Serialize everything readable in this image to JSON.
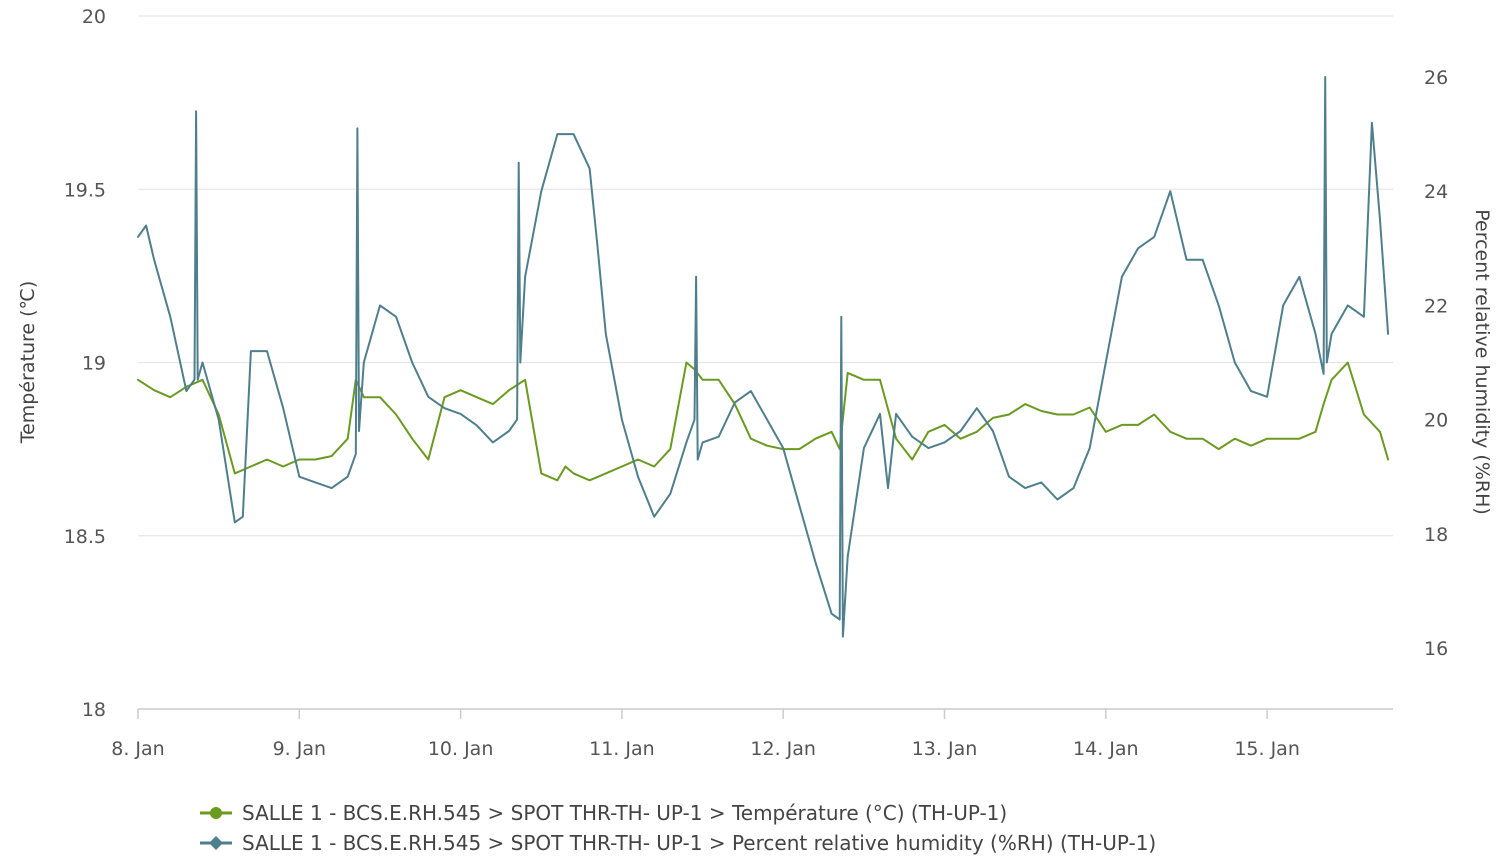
{
  "chart_data": {
    "type": "line",
    "x_axis": {
      "type": "datetime",
      "range": [
        "2024-01-08T00:00",
        "2024-01-15T18:00"
      ],
      "tick_labels": [
        "8. Jan",
        "9. Jan",
        "10. Jan",
        "11. Jan",
        "12. Jan",
        "13. Jan",
        "14. Jan",
        "15. Jan"
      ]
    },
    "y_axis_left": {
      "label": "Température (℃)",
      "range": [
        18,
        20
      ],
      "tick_labels": [
        "18",
        "18.5",
        "19",
        "19.5",
        "20"
      ]
    },
    "y_axis_right": {
      "label": "Percent relative humidity (%RH)",
      "range": [
        15,
        27
      ],
      "tick_labels": [
        "16",
        "18",
        "20",
        "22",
        "24",
        "26"
      ]
    },
    "grid": true,
    "legend_position": "bottom",
    "series": [
      {
        "name": "SALLE 1 - BCS.E.RH.545 > SPOT THR-TH- UP-1 > Température (°C) (TH-UP-1)",
        "axis": "left",
        "color": "#6a9a1f",
        "marker": "circle",
        "x_days": [
          0,
          0.1,
          0.2,
          0.3,
          0.4,
          0.5,
          0.6,
          0.7,
          0.8,
          0.9,
          1.0,
          1.1,
          1.2,
          1.3,
          1.35,
          1.4,
          1.5,
          1.6,
          1.7,
          1.8,
          1.9,
          2.0,
          2.1,
          2.2,
          2.3,
          2.4,
          2.5,
          2.6,
          2.65,
          2.7,
          2.8,
          2.9,
          3.0,
          3.1,
          3.2,
          3.3,
          3.4,
          3.45,
          3.5,
          3.6,
          3.7,
          3.8,
          3.9,
          4.0,
          4.1,
          4.2,
          4.3,
          4.35,
          4.4,
          4.5,
          4.6,
          4.7,
          4.8,
          4.9,
          5.0,
          5.1,
          5.2,
          5.3,
          5.4,
          5.5,
          5.6,
          5.7,
          5.8,
          5.9,
          6.0,
          6.1,
          6.2,
          6.3,
          6.4,
          6.5,
          6.6,
          6.7,
          6.8,
          6.9,
          7.0,
          7.1,
          7.2,
          7.3,
          7.35,
          7.4,
          7.5,
          7.6,
          7.7,
          7.75
        ],
        "values": [
          18.95,
          18.92,
          18.9,
          18.93,
          18.95,
          18.85,
          18.68,
          18.7,
          18.72,
          18.7,
          18.72,
          18.72,
          18.73,
          18.78,
          18.95,
          18.9,
          18.9,
          18.85,
          18.78,
          18.72,
          18.9,
          18.92,
          18.9,
          18.88,
          18.92,
          18.95,
          18.68,
          18.66,
          18.7,
          18.68,
          18.66,
          18.68,
          18.7,
          18.72,
          18.7,
          18.75,
          19.0,
          18.98,
          18.95,
          18.95,
          18.88,
          18.78,
          18.76,
          18.75,
          18.75,
          18.78,
          18.8,
          18.75,
          18.97,
          18.95,
          18.95,
          18.78,
          18.72,
          18.8,
          18.82,
          18.78,
          18.8,
          18.84,
          18.85,
          18.88,
          18.86,
          18.85,
          18.85,
          18.87,
          18.8,
          18.82,
          18.82,
          18.85,
          18.8,
          18.78,
          18.78,
          18.75,
          18.78,
          18.76,
          18.78,
          18.78,
          18.78,
          18.8,
          18.88,
          18.95,
          19.0,
          18.85,
          18.8,
          18.72
        ]
      },
      {
        "name": "SALLE 1 - BCS.E.RH.545 > SPOT THR-TH- UP-1 > Percent relative humidity (%RH) (TH-UP-1)",
        "axis": "right",
        "color": "#4f7f8c",
        "marker": "diamond",
        "x_days": [
          0,
          0.05,
          0.1,
          0.2,
          0.3,
          0.35,
          0.36,
          0.37,
          0.4,
          0.5,
          0.6,
          0.65,
          0.7,
          0.8,
          0.9,
          1.0,
          1.1,
          1.2,
          1.3,
          1.35,
          1.36,
          1.37,
          1.4,
          1.5,
          1.6,
          1.7,
          1.8,
          1.9,
          2.0,
          2.1,
          2.2,
          2.3,
          2.35,
          2.36,
          2.37,
          2.4,
          2.5,
          2.6,
          2.7,
          2.8,
          2.85,
          2.9,
          3.0,
          3.1,
          3.2,
          3.3,
          3.4,
          3.45,
          3.46,
          3.47,
          3.5,
          3.6,
          3.7,
          3.8,
          3.9,
          4.0,
          4.1,
          4.2,
          4.3,
          4.35,
          4.36,
          4.37,
          4.4,
          4.5,
          4.6,
          4.65,
          4.7,
          4.8,
          4.9,
          5.0,
          5.1,
          5.2,
          5.3,
          5.4,
          5.5,
          5.6,
          5.7,
          5.8,
          5.9,
          6.0,
          6.1,
          6.2,
          6.3,
          6.4,
          6.5,
          6.6,
          6.7,
          6.8,
          6.9,
          7.0,
          7.1,
          7.2,
          7.3,
          7.35,
          7.36,
          7.37,
          7.4,
          7.5,
          7.6,
          7.65,
          7.7,
          7.75
        ],
        "values": [
          23.2,
          23.4,
          22.8,
          21.8,
          20.5,
          20.7,
          25.4,
          20.7,
          21.0,
          20.0,
          18.2,
          18.3,
          21.2,
          21.2,
          20.2,
          19.0,
          18.9,
          18.8,
          19.0,
          19.4,
          25.1,
          19.8,
          21.0,
          22.0,
          21.8,
          21.0,
          20.4,
          20.2,
          20.1,
          19.9,
          19.6,
          19.8,
          20.0,
          24.5,
          21.0,
          22.5,
          24.0,
          25.0,
          25.0,
          24.4,
          23.0,
          21.5,
          20.0,
          19.0,
          18.3,
          18.7,
          19.6,
          20.0,
          22.5,
          19.3,
          19.6,
          19.7,
          20.3,
          20.5,
          20.0,
          19.5,
          18.5,
          17.5,
          16.6,
          16.5,
          21.8,
          16.2,
          17.6,
          19.5,
          20.1,
          18.8,
          20.1,
          19.7,
          19.5,
          19.6,
          19.8,
          20.2,
          19.8,
          19.0,
          18.8,
          18.9,
          18.6,
          18.8,
          19.5,
          21.0,
          22.5,
          23.0,
          23.2,
          24.0,
          22.8,
          22.8,
          22.0,
          21.0,
          20.5,
          20.4,
          22.0,
          22.5,
          21.5,
          20.8,
          26.0,
          21.0,
          21.5,
          22.0,
          21.8,
          25.2,
          23.5,
          21.5
        ]
      }
    ]
  }
}
